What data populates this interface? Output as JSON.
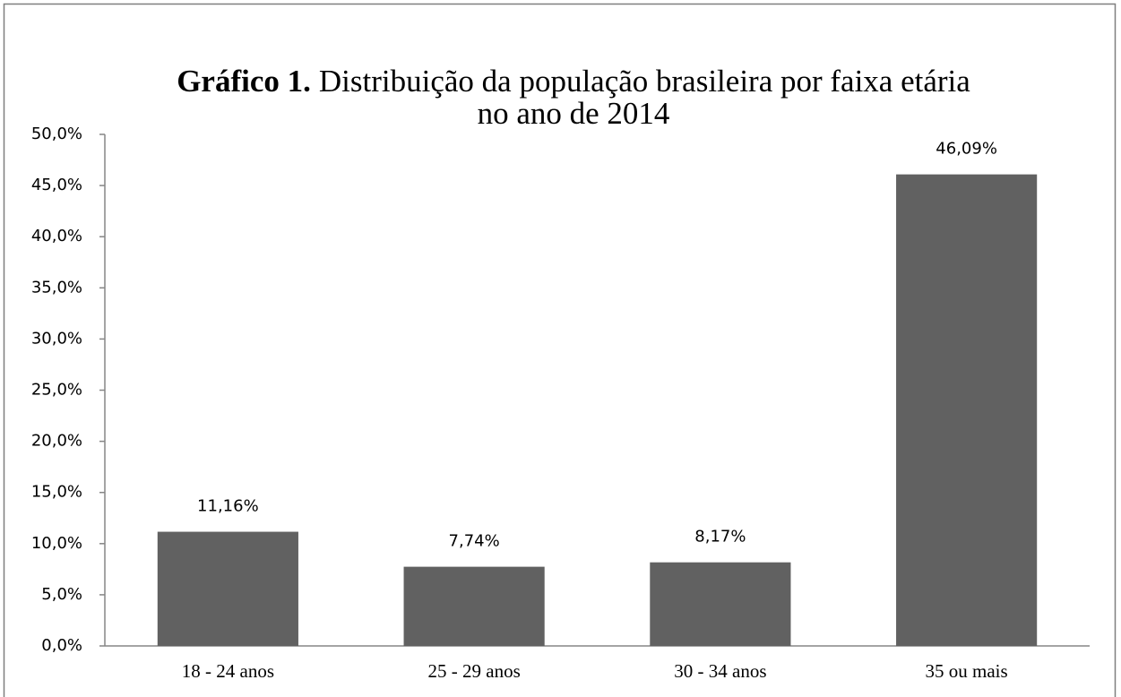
{
  "chart_data": {
    "type": "bar",
    "title_prefix": "Gráfico 1.",
    "title": "Distribuição da população brasileira por faixa etária",
    "title_line2": "no ano de 2014",
    "categories": [
      "18 - 24 anos",
      "25 - 29 anos",
      "30 - 34 anos",
      "35 ou mais"
    ],
    "values": [
      11.16,
      7.74,
      8.17,
      46.09
    ],
    "value_labels": [
      "11,16%",
      "7,74%",
      "8,17%",
      "46,09%"
    ],
    "color": "#616161",
    "ylim": [
      0,
      50
    ],
    "yticks": [
      {
        "value": 0,
        "label": "0,0%"
      },
      {
        "value": 5,
        "label": "5,0%"
      },
      {
        "value": 10,
        "label": "10,0%"
      },
      {
        "value": 15,
        "label": "15,0%"
      },
      {
        "value": 20,
        "label": "20,0%"
      },
      {
        "value": 25,
        "label": "25,0%"
      },
      {
        "value": 30,
        "label": "30,0%"
      },
      {
        "value": 35,
        "label": "35,0%"
      },
      {
        "value": 40,
        "label": "40,0%"
      },
      {
        "value": 45,
        "label": "45,0%"
      },
      {
        "value": 50,
        "label": "50,0%"
      }
    ],
    "grid": false
  }
}
